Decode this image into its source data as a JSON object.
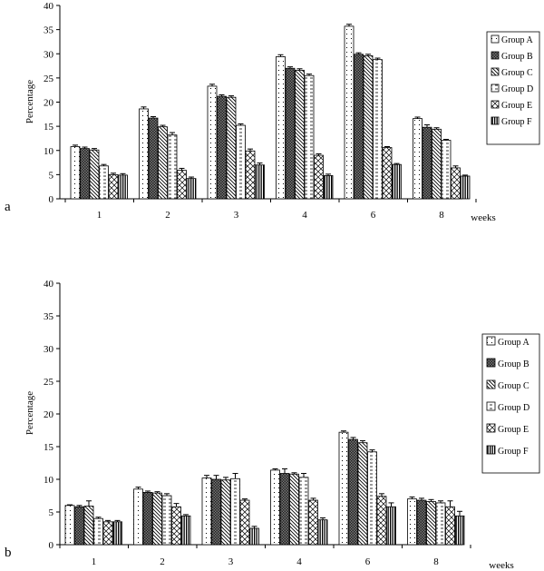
{
  "chart_data": [
    {
      "type": "bar",
      "panel_label": "a",
      "ylabel": "Percentage",
      "xlabel": "weeks",
      "ylim": [
        0,
        40
      ],
      "yticks": [
        0,
        5,
        10,
        15,
        20,
        25,
        30,
        35,
        40
      ],
      "categories": [
        "1",
        "2",
        "3",
        "4",
        "6",
        "8"
      ],
      "legend_position": "right",
      "grid": false,
      "series": [
        {
          "name": "Group A",
          "values": [
            10.8,
            18.6,
            23.3,
            29.4,
            35.7,
            16.6
          ],
          "errors": [
            0.3,
            0.4,
            0.4,
            0.4,
            0.4,
            0.3
          ]
        },
        {
          "name": "Group B",
          "values": [
            10.4,
            16.7,
            21.2,
            27.0,
            29.9,
            14.8
          ],
          "errors": [
            0.3,
            0.3,
            0.3,
            0.3,
            0.3,
            0.5
          ]
        },
        {
          "name": "Group C",
          "values": [
            10.1,
            14.9,
            21.0,
            26.6,
            29.6,
            14.4
          ],
          "errors": [
            0.3,
            0.3,
            0.3,
            0.3,
            0.3,
            0.3
          ]
        },
        {
          "name": "Group D",
          "values": [
            6.8,
            13.2,
            15.2,
            25.5,
            28.8,
            12.1
          ],
          "errors": [
            0.3,
            0.5,
            0.3,
            0.3,
            0.3,
            0.2
          ]
        },
        {
          "name": "Group E",
          "values": [
            5.0,
            5.9,
            9.9,
            9.0,
            10.6,
            6.4
          ],
          "errors": [
            0.3,
            0.4,
            0.4,
            0.3,
            0.2,
            0.4
          ]
        },
        {
          "name": "Group F",
          "values": [
            4.9,
            4.2,
            7.0,
            4.8,
            7.1,
            4.7
          ],
          "errors": [
            0.3,
            0.3,
            0.4,
            0.3,
            0.2,
            0.2
          ]
        }
      ]
    },
    {
      "type": "bar",
      "panel_label": "b",
      "ylabel": "Percentage",
      "xlabel": "weeks",
      "ylim": [
        0,
        40
      ],
      "yticks": [
        0,
        5,
        10,
        15,
        20,
        25,
        30,
        35,
        40
      ],
      "categories": [
        "1",
        "2",
        "3",
        "4",
        "6",
        "8"
      ],
      "legend_position": "right",
      "grid": false,
      "series": [
        {
          "name": "Group A",
          "values": [
            6.0,
            8.5,
            10.2,
            11.4,
            17.2,
            7.0
          ],
          "errors": [
            0.1,
            0.3,
            0.4,
            0.2,
            0.2,
            0.3
          ]
        },
        {
          "name": "Group B",
          "values": [
            5.8,
            8.0,
            10.0,
            10.9,
            16.1,
            6.8
          ],
          "errors": [
            0.2,
            0.2,
            0.6,
            0.7,
            0.3,
            0.3
          ]
        },
        {
          "name": "Group C",
          "values": [
            5.9,
            7.9,
            9.9,
            10.8,
            15.6,
            6.6
          ],
          "errors": [
            0.8,
            0.2,
            0.4,
            0.2,
            0.3,
            0.3
          ]
        },
        {
          "name": "Group D",
          "values": [
            4.0,
            7.5,
            10.1,
            10.3,
            14.2,
            6.4
          ],
          "errors": [
            0.2,
            0.3,
            0.8,
            0.6,
            0.3,
            0.3
          ]
        },
        {
          "name": "Group E",
          "values": [
            3.5,
            5.8,
            6.8,
            6.8,
            7.4,
            5.8
          ],
          "errors": [
            0.2,
            0.5,
            0.2,
            0.3,
            0.4,
            0.9
          ]
        },
        {
          "name": "Group F",
          "values": [
            3.5,
            4.4,
            2.5,
            3.8,
            5.8,
            4.4
          ],
          "errors": [
            0.2,
            0.2,
            0.3,
            0.3,
            0.6,
            0.7
          ]
        }
      ]
    }
  ]
}
